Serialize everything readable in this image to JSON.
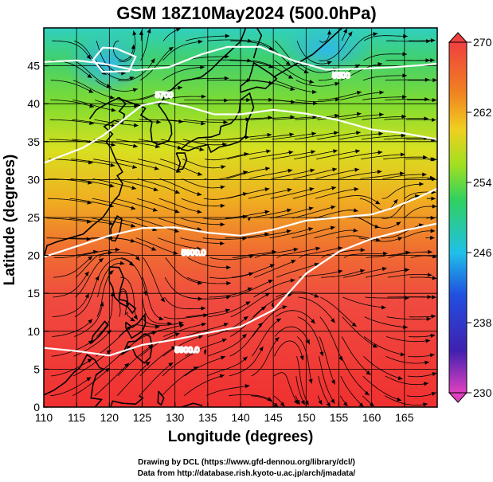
{
  "title": "GSM 18Z10May2024 (500.0hPa)",
  "x_axis": {
    "label": "Longitude (degrees)",
    "ticks": [
      "110",
      "115",
      "120",
      "125",
      "130",
      "135",
      "140",
      "145",
      "150",
      "155",
      "160",
      "165"
    ],
    "range": [
      110,
      170
    ]
  },
  "y_axis": {
    "label": "Latitude  (degrees)",
    "ticks": [
      "0",
      "5",
      "10",
      "15",
      "20",
      "25",
      "30",
      "35",
      "40",
      "45"
    ],
    "range": [
      0,
      50
    ]
  },
  "colorbar": {
    "ticks": [
      "270",
      "262",
      "254",
      "246",
      "238",
      "230"
    ],
    "range": [
      230,
      270
    ],
    "colors": [
      "#e040c0",
      "#4020b0",
      "#2050e0",
      "#20c0e8",
      "#30d060",
      "#a0e020",
      "#f0d020",
      "#f08020",
      "#f04040"
    ]
  },
  "contours": [
    {
      "label": "5500",
      "level": 5500
    },
    {
      "label": "5700",
      "level": 5700
    },
    {
      "label": "5900.0",
      "level": 5900
    }
  ],
  "credits": {
    "line1": "Drawing by DCL (https://www.gfd-dennou.org/library/dcl/)",
    "line2": "Data from http://database.rish.kyoto-u.ac.jp/arch/jmadata/"
  }
}
